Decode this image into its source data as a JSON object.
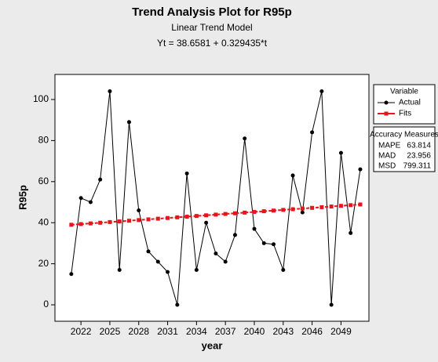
{
  "chart_data": {
    "type": "line",
    "title": "Trend Analysis Plot for R95p",
    "subtitle": "Linear Trend Model",
    "equation": "Yt = 38.6581 + 0.329435*t",
    "x_label": "year",
    "y_label": "R95p",
    "x": [
      2021,
      2022,
      2023,
      2024,
      2025,
      2026,
      2027,
      2028,
      2029,
      2030,
      2031,
      2032,
      2033,
      2034,
      2035,
      2036,
      2037,
      2038,
      2039,
      2040,
      2041,
      2042,
      2043,
      2044,
      2045,
      2046,
      2047,
      2048,
      2049,
      2050,
      2051
    ],
    "series": [
      {
        "name": "Actual",
        "color": "#000000",
        "marker": "circle",
        "values": [
          15,
          52,
          50,
          61,
          104,
          17,
          89,
          46,
          26,
          21,
          16,
          0,
          64,
          17,
          40,
          25,
          21,
          34,
          81,
          37,
          30,
          29.5,
          17,
          63,
          45,
          84,
          104,
          0,
          74,
          35,
          66
        ]
      },
      {
        "name": "Fits",
        "color": "#e8141b",
        "marker": "square",
        "values": [
          38.99,
          39.32,
          39.65,
          39.98,
          40.31,
          40.63,
          40.96,
          41.29,
          41.62,
          41.95,
          42.28,
          42.61,
          42.94,
          43.27,
          43.6,
          43.93,
          44.26,
          44.59,
          44.92,
          45.25,
          45.58,
          45.91,
          46.23,
          46.56,
          46.89,
          47.22,
          47.55,
          47.88,
          48.21,
          48.54,
          48.87
        ]
      }
    ],
    "xlim": [
      2019.3,
      2051.9
    ],
    "xticks": [
      2022,
      2025,
      2028,
      2031,
      2034,
      2037,
      2040,
      2043,
      2046,
      2049
    ],
    "ylim": [
      -8,
      112.2
    ],
    "yticks": [
      0,
      20,
      40,
      60,
      80,
      100
    ],
    "legend_title": "Variable",
    "accuracy": {
      "title": "Accuracy Measures",
      "rows": [
        [
          "MAPE",
          "63.814"
        ],
        [
          "MAD",
          "23.956"
        ],
        [
          "MSD",
          "799.311"
        ]
      ]
    }
  }
}
